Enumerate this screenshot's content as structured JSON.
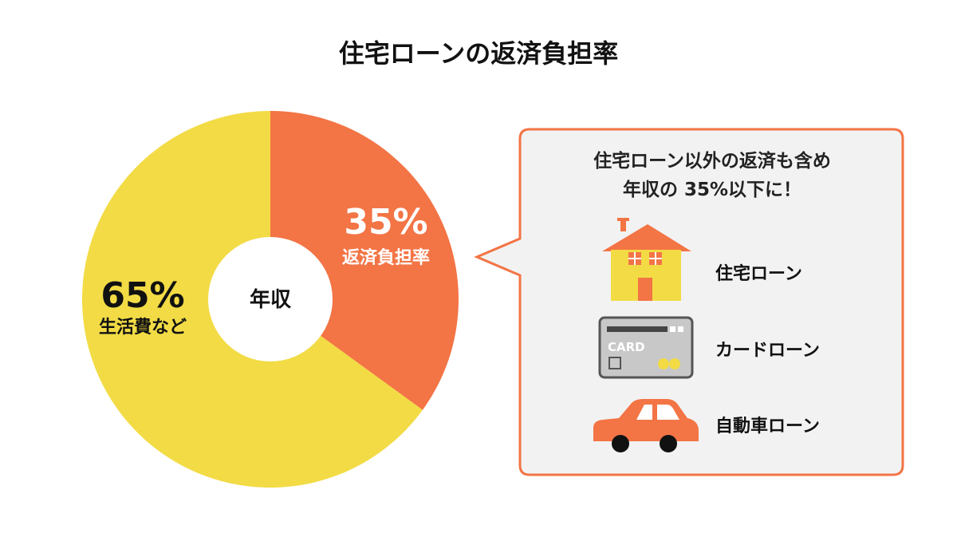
{
  "title": "住宅ローンの返済負担率",
  "colors": {
    "housing_slice": "#f37445",
    "other_slice": "#f2db45",
    "callout_border": "#f37445",
    "callout_bg": "#f2f2f2",
    "highlight": "#8fd24a"
  },
  "chart_data": {
    "type": "pie",
    "title": "住宅ローンの返済負担率",
    "center_label": "年収",
    "slices": [
      {
        "percent_label": "35%",
        "name": "返済負担率",
        "value": 35,
        "color": "#f37445"
      },
      {
        "percent_label": "65%",
        "name": "生活費など",
        "value": 65,
        "color": "#f2db45"
      }
    ]
  },
  "callout": {
    "line1": "住宅ローン以外の返済も含め",
    "line2": "年収の 35%以下に！",
    "items": [
      {
        "label": "住宅ローン",
        "icon": "house-icon"
      },
      {
        "label": "カードローン",
        "icon": "credit-card-icon",
        "card_text": "CARD"
      },
      {
        "label": "自動車ローン",
        "icon": "car-icon"
      }
    ]
  }
}
